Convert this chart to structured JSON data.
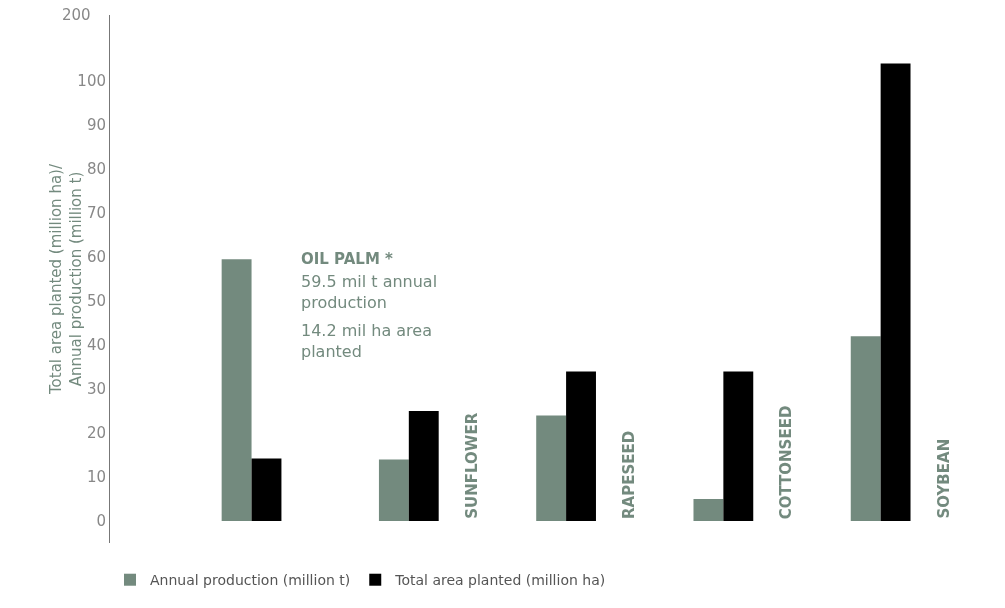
{
  "chart_data": {
    "type": "bar",
    "ylabel": "Total area planted (million ha)/ Annual production (million t)",
    "categories": [
      null,
      "SUNFLOWER",
      "RAPESEED",
      "COTTONSEED",
      "SOYBEAN"
    ],
    "series": [
      {
        "name": "Annual production (million t)",
        "color": "#738a7e",
        "values": [
          59.5,
          14,
          24,
          5,
          42
        ]
      },
      {
        "name": "Total area planted (million ha)",
        "color": "#000000",
        "values": [
          14.2,
          25,
          34,
          34,
          104
        ]
      }
    ],
    "ylim": [
      -5,
      115
    ],
    "yticks": [
      0,
      10,
      20,
      30,
      40,
      50,
      60,
      70,
      80,
      90,
      100
    ],
    "grid": false,
    "legend": "bottom",
    "annotations": [
      "200",
      "OIL PALM *",
      "59.5 mil t annual production",
      "14.2 mil ha area planted"
    ]
  }
}
